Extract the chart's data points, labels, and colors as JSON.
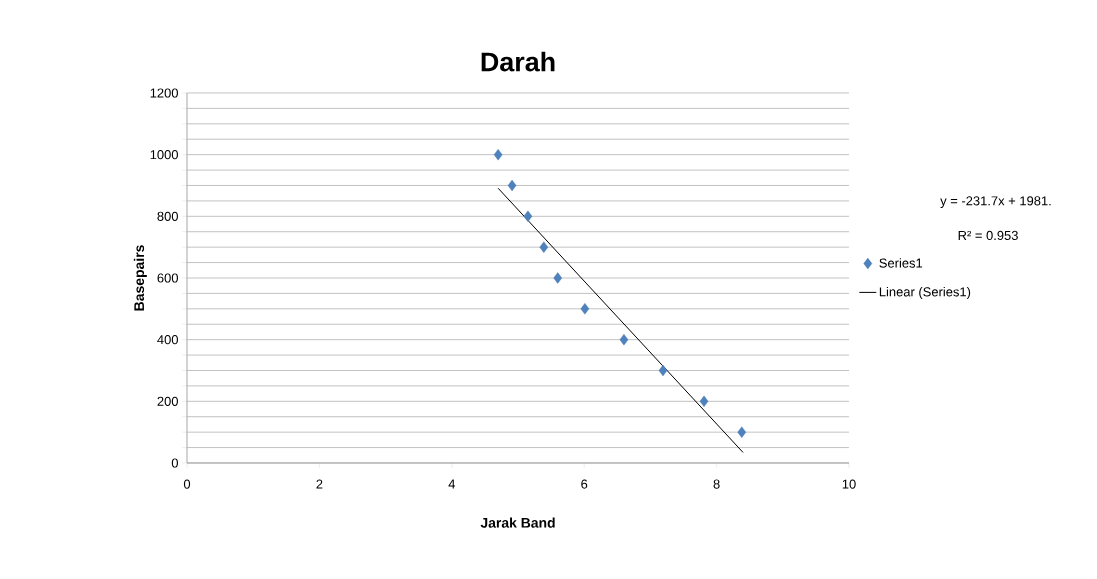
{
  "chart_data": {
    "type": "scatter",
    "title": "Darah",
    "xlabel": "Jarak Band",
    "ylabel": "Basepairs",
    "series": [
      {
        "name": "Series1",
        "color": "#4f81bd",
        "marker": "diamond",
        "x": [
          4.7,
          4.91,
          5.15,
          5.39,
          5.6,
          6.01,
          6.6,
          7.19,
          7.81,
          8.38
        ],
        "values": [
          1000,
          900,
          800,
          700,
          600,
          500,
          400,
          300,
          200,
          100
        ]
      },
      {
        "name": "Linear (Series1)",
        "type": "line",
        "color": "#000000",
        "line_style": "solid",
        "x": [
          4.7,
          8.4
        ],
        "values": [
          891,
          34
        ]
      }
    ],
    "annotations": [
      "y = -231.7x + 1981.",
      "R² = 0.953"
    ],
    "xlim": [
      0,
      10
    ],
    "xticks": [
      0,
      2,
      4,
      6,
      8,
      10
    ],
    "ylim": [
      0,
      1200
    ],
    "yticks": [
      0,
      {
        "value": 50,
        "label": null
      },
      {
        "value": 100,
        "label": null
      },
      {
        "value": 150,
        "label": null
      },
      200,
      {
        "value": 250,
        "label": null
      },
      {
        "value": 300,
        "label": null
      },
      {
        "value": 350,
        "label": null
      },
      400,
      {
        "value": 450,
        "label": null
      },
      {
        "value": 500,
        "label": null
      },
      {
        "value": 550,
        "label": null
      },
      600,
      {
        "value": 650,
        "label": null
      },
      {
        "value": 700,
        "label": null
      },
      {
        "value": 750,
        "label": null
      },
      800,
      {
        "value": 850,
        "label": null
      },
      {
        "value": 900,
        "label": null
      },
      {
        "value": 950,
        "label": null
      },
      1000,
      {
        "value": 1050,
        "label": null
      },
      {
        "value": 1100,
        "label": null
      },
      {
        "value": 1150,
        "label": null
      },
      1200
    ],
    "grid": "y",
    "legend": "right"
  }
}
